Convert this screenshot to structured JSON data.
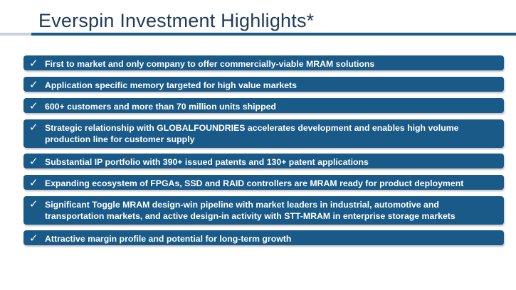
{
  "slide": {
    "title": "Everspin Investment Highlights*",
    "highlights": [
      "First to market and only company to offer commercially-viable MRAM solutions",
      "Application specific memory targeted for high value markets",
      "600+ customers and more than 70 million units shipped",
      "Strategic relationship with GLOBALFOUNDRIES accelerates development and enables high volume production line for customer supply",
      "Substantial IP portfolio with 390+ issued patents and 130+ patent applications",
      "Expanding ecosystem of FPGAs, SSD and RAID controllers are MRAM ready for product deployment",
      "Significant Toggle MRAM design-win pipeline with market leaders in industrial, automotive and transportation markets, and active design-in activity with STT-MRAM in enterprise storage markets",
      "Attractive margin profile and potential for long-term growth"
    ],
    "check_glyph": "✓"
  },
  "colors": {
    "title_text": "#1f3b57",
    "rule": "#1c5b86",
    "item_background": "#1a5a88",
    "item_text": "#ffffff"
  }
}
